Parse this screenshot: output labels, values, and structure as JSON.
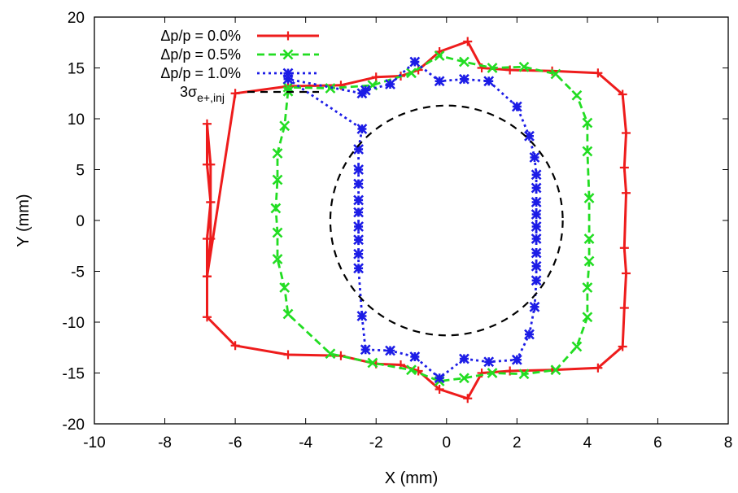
{
  "chart_data": {
    "type": "line",
    "title": "",
    "xlabel": "X (mm)",
    "ylabel": "Y (mm)",
    "xlim": [
      -10,
      8
    ],
    "ylim": [
      -20,
      20
    ],
    "x_ticks": [
      -10,
      -8,
      -6,
      -4,
      -2,
      0,
      2,
      4,
      6,
      8
    ],
    "y_ticks": [
      -20,
      -15,
      -10,
      -5,
      0,
      5,
      10,
      15,
      20
    ],
    "grid": false,
    "legend_position": "top-left",
    "series": [
      {
        "name": "Δp/p = 0.0%",
        "color": "#ee1c1c",
        "marker": "plus",
        "dash": "solid",
        "x": [
          -6.8,
          -6.7,
          -6.7,
          -6.8,
          -6.8,
          -6.0,
          -4.5,
          -3.0,
          -2.0,
          -1.3,
          -0.8,
          -0.2,
          0.6,
          1.0,
          1.8,
          3.0,
          4.3,
          5.0,
          5.1,
          5.05,
          5.1,
          5.05,
          5.1,
          5.05,
          5.0,
          4.3,
          3.0,
          1.8,
          1.0,
          0.6,
          -0.2,
          -0.8,
          -1.3,
          -2.0,
          -3.0,
          -4.5,
          -6.0,
          -6.8,
          -6.8,
          -6.7,
          -6.7,
          -6.8
        ],
        "y": [
          9.5,
          5.5,
          1.8,
          -1.8,
          -5.5,
          12.5,
          13.2,
          13.3,
          14.1,
          14.2,
          14.8,
          16.6,
          17.6,
          15.0,
          14.8,
          14.7,
          14.5,
          12.4,
          8.6,
          5.2,
          2.7,
          -2.7,
          -5.2,
          -8.6,
          -12.4,
          -14.5,
          -14.7,
          -14.8,
          -15.0,
          -17.5,
          -16.6,
          -14.8,
          -14.2,
          -14.1,
          -13.3,
          -13.2,
          -12.3,
          -9.5,
          -5.5,
          -1.8,
          1.8,
          5.5
        ]
      },
      {
        "name": "Δp/p = 0.5%",
        "color": "#22dd22",
        "marker": "cross",
        "dash": "dashed",
        "x": [
          -4.5,
          -4.6,
          -4.8,
          -4.8,
          -4.85,
          -4.8,
          -4.8,
          -4.6,
          -4.5,
          -3.3,
          -2.1,
          -1.0,
          -0.2,
          0.5,
          1.3,
          2.2,
          3.1,
          3.7,
          4.0,
          4.0,
          4.05,
          4.05,
          4.05,
          4.0,
          4.0,
          3.7,
          3.1,
          2.2,
          1.3,
          0.5,
          -0.2,
          -1.0,
          -2.1,
          -3.3,
          -4.5
        ],
        "y": [
          12.7,
          9.3,
          6.6,
          4.0,
          1.2,
          -1.2,
          -3.8,
          -6.6,
          -9.2,
          -13.1,
          -14.0,
          -14.7,
          -15.8,
          -15.5,
          -15.0,
          -15.1,
          -14.7,
          -12.4,
          -9.5,
          -6.6,
          -4.0,
          -1.8,
          2.2,
          6.8,
          9.6,
          12.3,
          14.4,
          15.1,
          15.0,
          15.6,
          16.2,
          14.5,
          13.3,
          13.0,
          13.1
        ]
      },
      {
        "name": "Δp/p = 1.0%",
        "color": "#1c1ce6",
        "marker": "star",
        "dash": "dotted",
        "x": [
          -2.4,
          -2.5,
          -2.5,
          -2.5,
          -2.5,
          -2.5,
          -2.5,
          -2.5,
          -2.5,
          -2.5,
          -2.4,
          -2.3,
          -1.6,
          -0.9,
          -0.2,
          0.5,
          1.2,
          2.0,
          2.35,
          2.5,
          2.55,
          2.55,
          2.55,
          2.55,
          2.55,
          2.55,
          2.55,
          2.55,
          2.55,
          2.5,
          2.35,
          2.0,
          1.2,
          0.5,
          -0.2,
          -0.9,
          -1.6,
          -2.3,
          -2.4,
          -4.5
        ],
        "y": [
          9.0,
          7.0,
          5.0,
          3.6,
          2.0,
          0.8,
          -0.6,
          -1.9,
          -3.3,
          -4.7,
          -9.4,
          -12.7,
          -12.8,
          -13.4,
          -15.5,
          -13.6,
          -13.9,
          -13.7,
          -11.2,
          -8.5,
          -5.9,
          -4.5,
          -3.2,
          -1.8,
          -0.6,
          0.6,
          1.8,
          3.2,
          4.5,
          6.2,
          8.3,
          11.2,
          13.7,
          13.9,
          13.7,
          15.6,
          13.4,
          12.8,
          12.5,
          13.9
        ]
      },
      {
        "name": "3σe+,inj",
        "color": "#000000",
        "marker": "none",
        "dash": "dashed",
        "shape": "ellipse",
        "center": [
          0,
          0
        ],
        "radius_x": 3.3,
        "radius_y": 11.3
      }
    ],
    "legend_entries": [
      {
        "label": "Δp/p = 0.0%",
        "color": "#ee1c1c"
      },
      {
        "label": "Δp/p = 0.5%",
        "color": "#22dd22"
      },
      {
        "label": "Δp/p = 1.0%",
        "color": "#1c1ce6"
      },
      {
        "label_main": "3σ",
        "label_sub": "e+,inj",
        "color": "#000000"
      }
    ]
  }
}
